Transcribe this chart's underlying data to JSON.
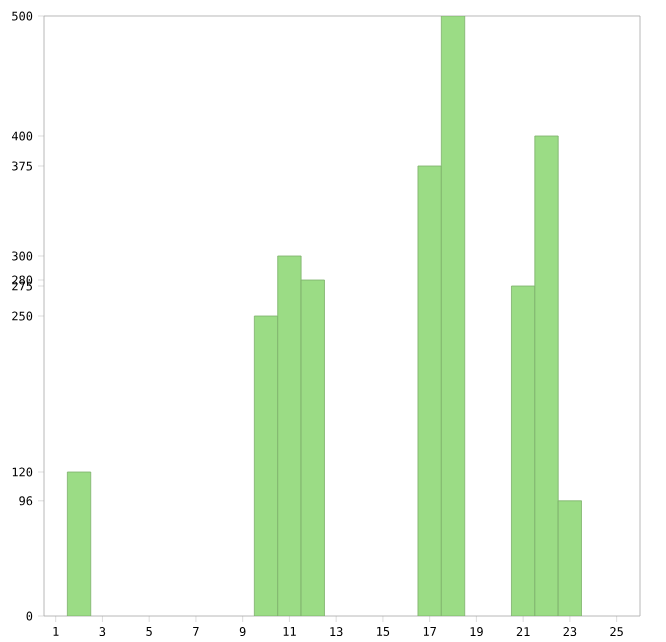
{
  "chart_data": {
    "type": "bar",
    "x": [
      2,
      10,
      11,
      12,
      17,
      18,
      21,
      22,
      23
    ],
    "values": [
      120,
      250,
      300,
      280,
      375,
      500,
      275,
      400,
      96
    ],
    "color": "#9bdc85",
    "xlim": [
      0.5,
      26
    ],
    "xticks": [
      1,
      3,
      5,
      7,
      9,
      11,
      13,
      15,
      17,
      19,
      21,
      23,
      25
    ],
    "ylim": [
      0,
      500
    ],
    "yticks": [
      0,
      96,
      120,
      250,
      275,
      280,
      300,
      375,
      400,
      500
    ],
    "grid": false
  }
}
